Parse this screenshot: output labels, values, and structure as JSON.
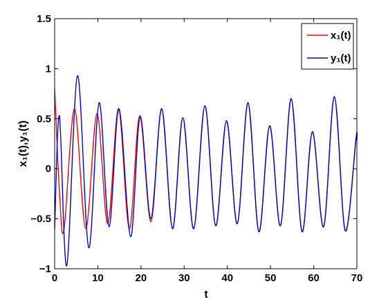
{
  "chart_data": {
    "type": "line",
    "title": "",
    "xlabel": "t",
    "ylabel": "x₁(t),y₁(t)",
    "xlim": [
      0,
      70
    ],
    "ylim": [
      -1,
      1.5
    ],
    "xticks": [
      0,
      10,
      20,
      30,
      40,
      50,
      60,
      70
    ],
    "yticks": [
      -1,
      -0.5,
      0,
      0.5,
      1,
      1.5
    ],
    "xtick_labels": [
      "0",
      "10",
      "20",
      "30",
      "40",
      "50",
      "60",
      "70"
    ],
    "ytick_labels": [
      "−1",
      "−0.5",
      "0",
      "0.5",
      "1",
      "1.5"
    ],
    "grid": false,
    "legend_position": "top-right",
    "series": [
      {
        "name": "x₁(t)",
        "color": "#ff0000",
        "points": [
          [
            0,
            0.8
          ],
          [
            1.2,
            -0.3
          ],
          [
            2.2,
            -0.6
          ],
          [
            4.6,
            0.6
          ],
          [
            7.2,
            -0.6
          ],
          [
            9.8,
            0.55
          ],
          [
            12.3,
            -0.55
          ],
          [
            14.8,
            0.6
          ],
          [
            17.3,
            -0.6
          ],
          [
            19.7,
            0.53
          ],
          [
            22.3,
            -0.53
          ],
          [
            24.8,
            0.6
          ],
          [
            27.3,
            -0.6
          ],
          [
            29.7,
            0.51
          ],
          [
            32.2,
            -0.6
          ],
          [
            34.8,
            0.63
          ],
          [
            37.3,
            -0.57
          ],
          [
            39.8,
            0.48
          ],
          [
            42.3,
            -0.55
          ],
          [
            44.8,
            0.66
          ],
          [
            47.3,
            -0.63
          ],
          [
            49.8,
            0.43
          ],
          [
            52.3,
            -0.57
          ],
          [
            54.8,
            0.7
          ],
          [
            57.3,
            -0.63
          ],
          [
            59.7,
            0.37
          ],
          [
            62.3,
            -0.58
          ],
          [
            64.8,
            0.72
          ],
          [
            67.3,
            -0.62
          ],
          [
            69.8,
            0.3
          ],
          [
            70,
            0.28
          ]
        ]
      },
      {
        "name": "y₁(t)",
        "color": "#0000cc",
        "points": [
          [
            0,
            -0.6
          ],
          [
            1.1,
            0.53
          ],
          [
            2.8,
            -0.97
          ],
          [
            5.3,
            0.93
          ],
          [
            7.9,
            -0.79
          ],
          [
            10.3,
            0.66
          ],
          [
            12.6,
            -0.58
          ],
          [
            14.9,
            0.6
          ],
          [
            17.6,
            -0.68
          ],
          [
            19.8,
            0.52
          ],
          [
            22.3,
            -0.5
          ],
          [
            24.8,
            0.6
          ],
          [
            27.3,
            -0.6
          ],
          [
            29.7,
            0.51
          ],
          [
            32.2,
            -0.6
          ],
          [
            34.8,
            0.63
          ],
          [
            37.3,
            -0.57
          ],
          [
            39.8,
            0.48
          ],
          [
            42.3,
            -0.55
          ],
          [
            44.8,
            0.66
          ],
          [
            47.3,
            -0.63
          ],
          [
            49.8,
            0.43
          ],
          [
            52.3,
            -0.57
          ],
          [
            54.8,
            0.7
          ],
          [
            57.3,
            -0.63
          ],
          [
            59.7,
            0.37
          ],
          [
            62.3,
            -0.58
          ],
          [
            64.8,
            0.72
          ],
          [
            67.3,
            -0.62
          ],
          [
            69.8,
            0.3
          ],
          [
            70,
            0.28
          ]
        ]
      }
    ]
  }
}
